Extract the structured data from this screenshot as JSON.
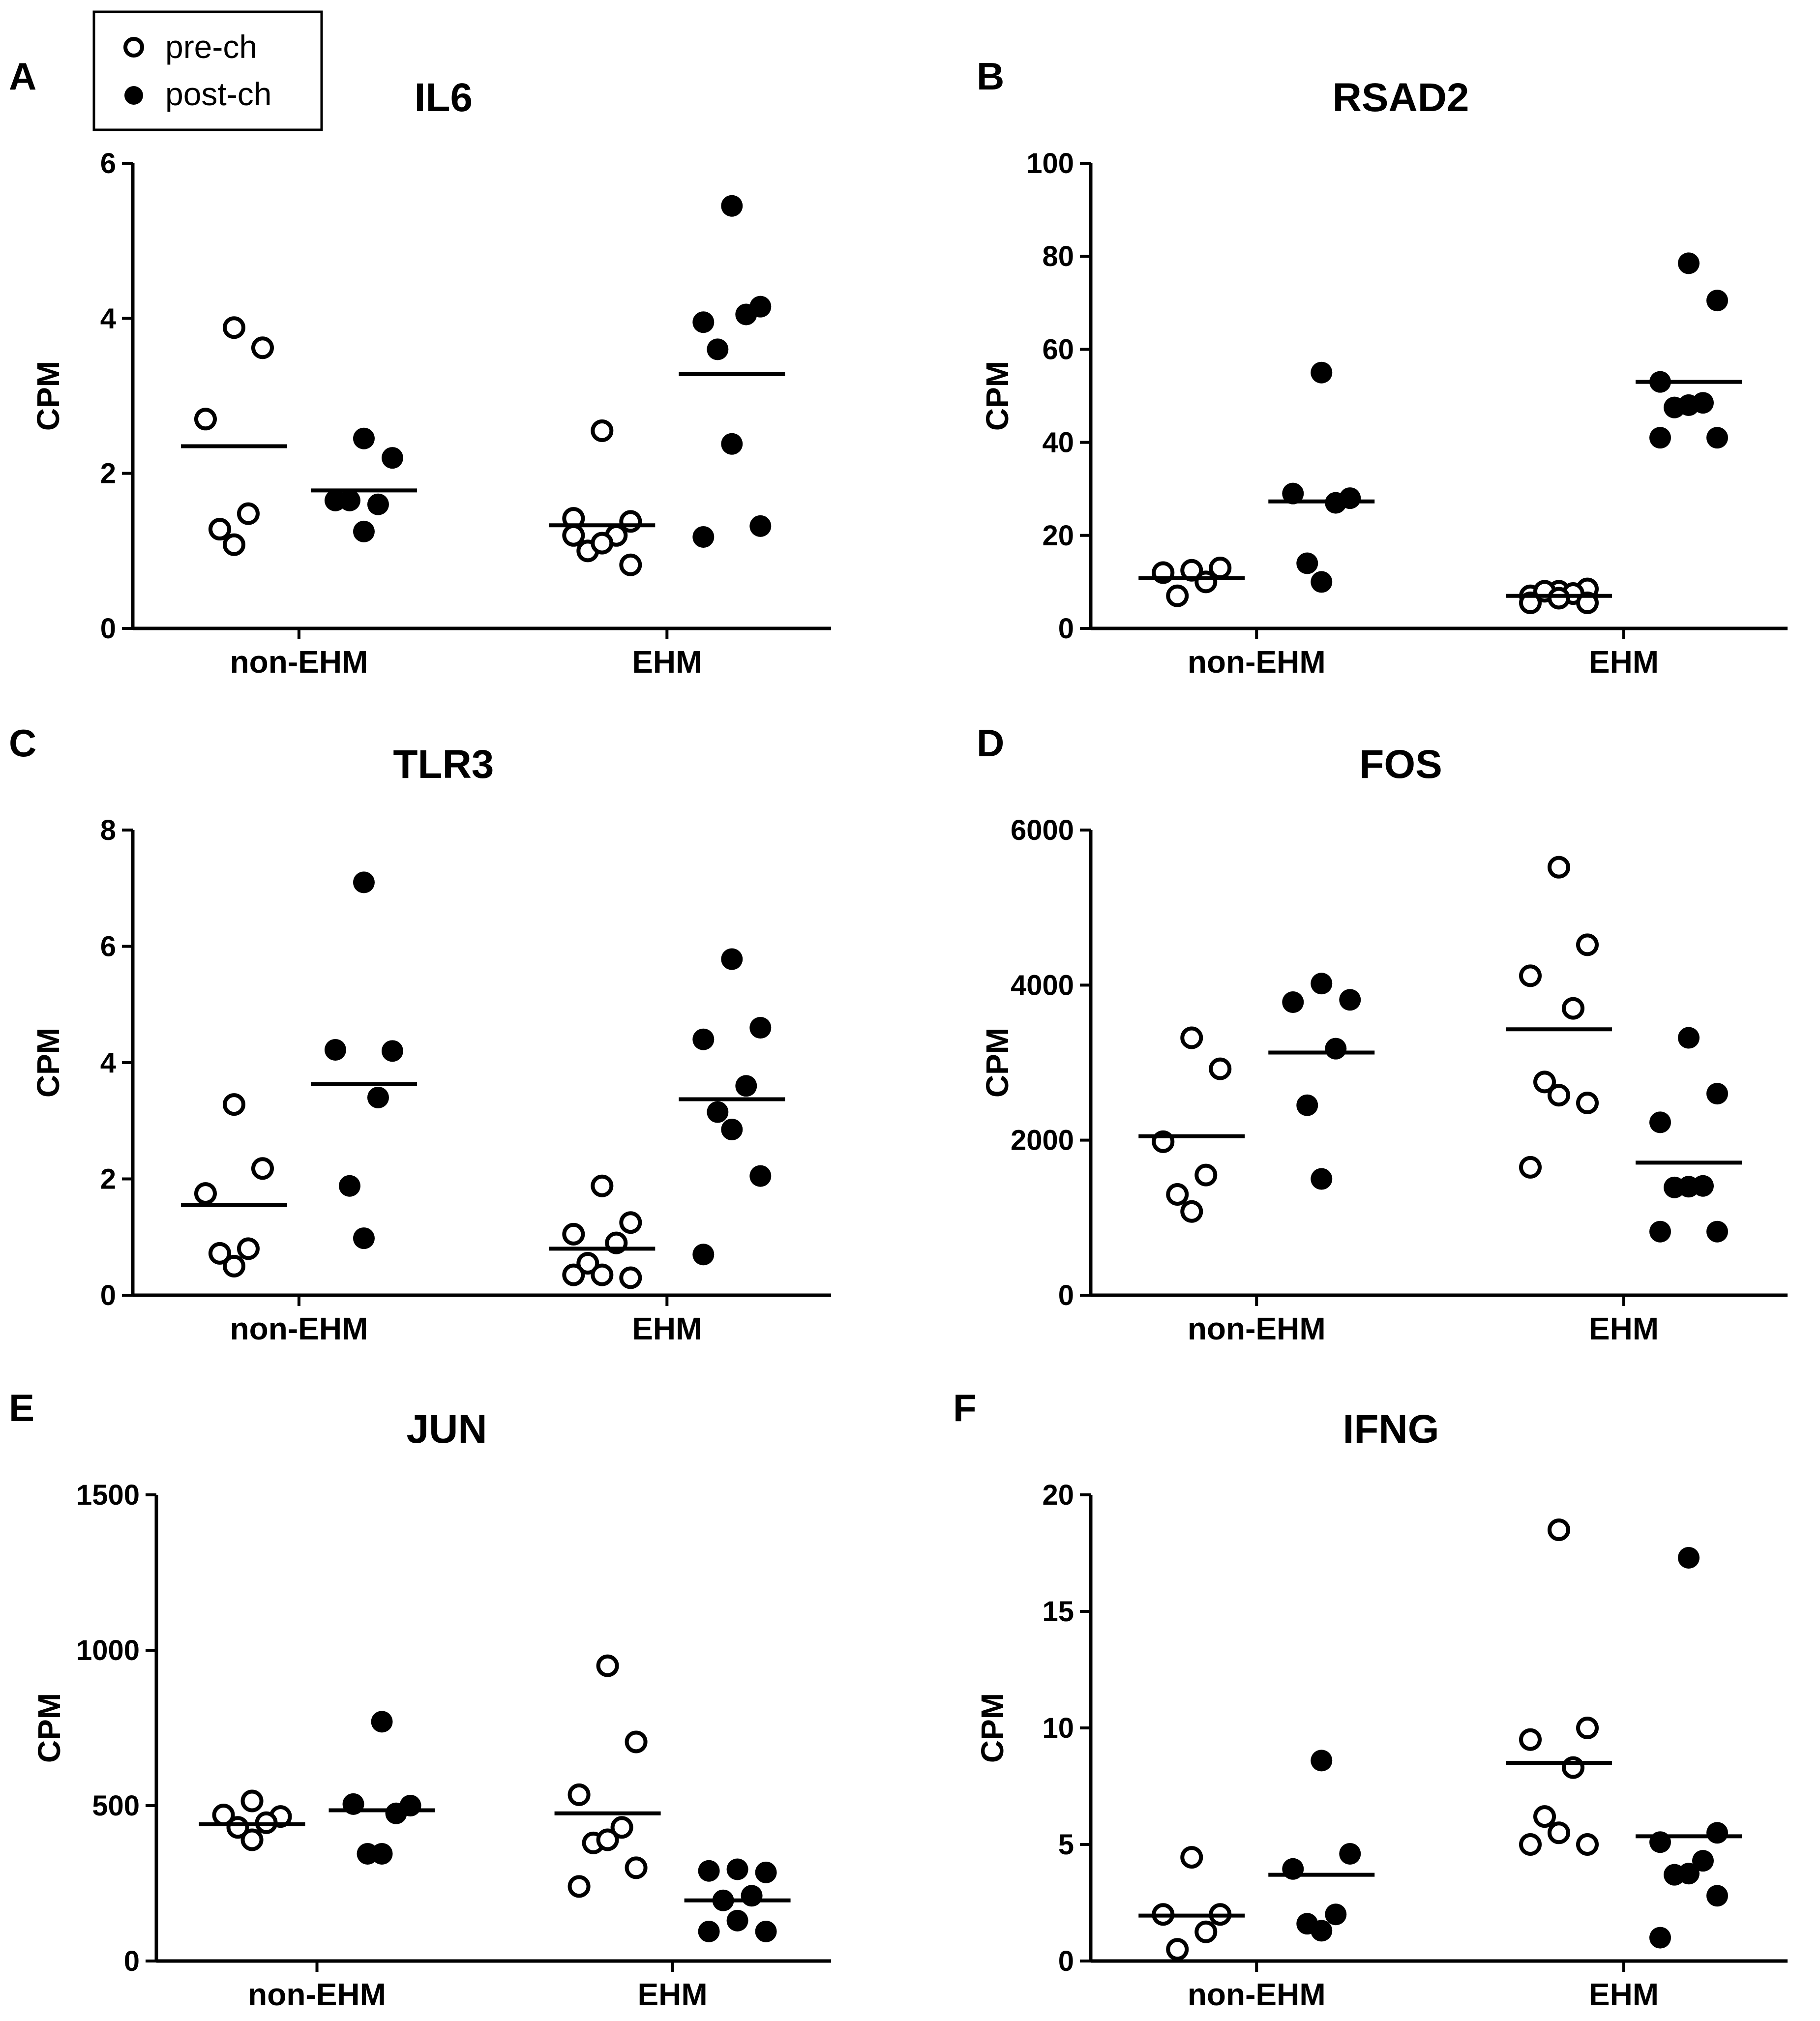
{
  "legend": {
    "entries": [
      {
        "name": "pre-ch",
        "marker": "open-circle"
      },
      {
        "name": "post-ch",
        "marker": "filled-circle"
      }
    ]
  },
  "colors": {
    "ink": "#000000",
    "background": "#ffffff"
  },
  "chart_data": [
    {
      "panel": "A",
      "type": "scatter",
      "title": "IL6",
      "ylabel": "CPM",
      "xlabel": "",
      "categories": [
        "non-EHM",
        "EHM"
      ],
      "ylim": [
        0,
        6
      ],
      "yticks": [
        0,
        2,
        4,
        6
      ],
      "yticklabels": [
        "0",
        "2",
        "4",
        "6"
      ],
      "series": [
        {
          "name": "pre-ch",
          "mean": [
            2.35,
            1.33
          ],
          "values": [
            [
              3.88,
              3.62,
              2.7,
              1.48,
              1.28,
              1.08
            ],
            [
              2.55,
              1.38,
              1.42,
              1.2,
              1.0,
              1.1,
              0.82,
              1.2
            ]
          ]
        },
        {
          "name": "post-ch",
          "mean": [
            1.78,
            3.28
          ],
          "values": [
            [
              2.45,
              2.2,
              1.65,
              1.6,
              1.65,
              1.25
            ],
            [
              5.45,
              4.15,
              3.95,
              4.05,
              3.6,
              2.38,
              1.32,
              1.18
            ]
          ]
        }
      ]
    },
    {
      "panel": "B",
      "type": "scatter",
      "title": "RSAD2",
      "ylabel": "CPM",
      "xlabel": "",
      "categories": [
        "non-EHM",
        "EHM"
      ],
      "ylim": [
        0,
        100
      ],
      "yticks": [
        0,
        20,
        40,
        60,
        80,
        100
      ],
      "yticklabels": [
        "0",
        "20",
        "40",
        "60",
        "80",
        "100"
      ],
      "series": [
        {
          "name": "pre-ch",
          "mean": [
            10.8,
            7.0
          ],
          "values": [
            [
              12.5,
              13,
              12,
              10,
              7
            ],
            [
              8,
              8.5,
              7,
              7.5,
              8,
              6.5,
              5.5,
              5.5
            ]
          ]
        },
        {
          "name": "post-ch",
          "mean": [
            27.3,
            53.0
          ],
          "values": [
            [
              55,
              28,
              29,
              27,
              14,
              10
            ],
            [
              78.5,
              70.5,
              53,
              48.5,
              47.5,
              48,
              41,
              41
            ]
          ]
        }
      ]
    },
    {
      "panel": "C",
      "type": "scatter",
      "title": "TLR3",
      "ylabel": "CPM",
      "xlabel": "",
      "categories": [
        "non-EHM",
        "EHM"
      ],
      "ylim": [
        0,
        8
      ],
      "yticks": [
        0,
        2,
        4,
        6,
        8
      ],
      "yticklabels": [
        "0",
        "2",
        "4",
        "6",
        "8"
      ],
      "series": [
        {
          "name": "pre-ch",
          "mean": [
            1.55,
            0.8
          ],
          "values": [
            [
              3.28,
              2.18,
              1.75,
              0.8,
              0.72,
              0.5
            ],
            [
              1.88,
              1.25,
              1.05,
              0.9,
              0.55,
              0.35,
              0.3,
              0.35
            ]
          ]
        },
        {
          "name": "post-ch",
          "mean": [
            3.63,
            3.37
          ],
          "values": [
            [
              7.1,
              4.2,
              4.22,
              3.4,
              1.88,
              0.98
            ],
            [
              5.78,
              4.6,
              4.4,
              3.6,
              3.15,
              2.85,
              2.05,
              0.7
            ]
          ]
        }
      ]
    },
    {
      "panel": "D",
      "type": "scatter",
      "title": "FOS",
      "ylabel": "CPM",
      "xlabel": "",
      "categories": [
        "non-EHM",
        "EHM"
      ],
      "ylim": [
        0,
        6000
      ],
      "yticks": [
        0,
        2000,
        4000,
        6000
      ],
      "yticklabels": [
        "0",
        "2000",
        "4000",
        "6000"
      ],
      "series": [
        {
          "name": "pre-ch",
          "mean": [
            2050,
            3430
          ],
          "values": [
            [
              3320,
              2920,
              1980,
              1550,
              1300,
              1080
            ],
            [
              5520,
              4520,
              4120,
              3700,
              2750,
              2580,
              2480,
              1650
            ]
          ]
        },
        {
          "name": "post-ch",
          "mean": [
            3130,
            1710
          ],
          "values": [
            [
              4020,
              3810,
              3780,
              3180,
              2450,
              1500
            ],
            [
              3320,
              2600,
              2230,
              1410,
              1390,
              1400,
              820,
              820
            ]
          ]
        }
      ]
    },
    {
      "panel": "E",
      "type": "scatter",
      "title": "JUN",
      "ylabel": "CPM",
      "xlabel": "",
      "categories": [
        "non-EHM",
        "EHM"
      ],
      "ylim": [
        0,
        1500
      ],
      "yticks": [
        0,
        500,
        1000,
        1500
      ],
      "yticklabels": [
        "0",
        "500",
        "1000",
        "1500"
      ],
      "series": [
        {
          "name": "pre-ch",
          "mean": [
            440,
            475
          ],
          "values": [
            [
              515,
              465,
              470,
              445,
              430,
              390
            ],
            [
              950,
              705,
              535,
              430,
              380,
              390,
              300,
              240
            ]
          ]
        },
        {
          "name": "post-ch",
          "mean": [
            485,
            195
          ],
          "values": [
            [
              770,
              500,
              505,
              475,
              345,
              345
            ],
            [
              295,
              285,
              290,
              210,
              195,
              130,
              95,
              95
            ]
          ]
        }
      ]
    },
    {
      "panel": "F",
      "type": "scatter",
      "title": "IFNG",
      "ylabel": "CPM",
      "xlabel": "",
      "categories": [
        "non-EHM",
        "EHM"
      ],
      "ylim": [
        0,
        20
      ],
      "yticks": [
        0,
        5,
        10,
        15,
        20
      ],
      "yticklabels": [
        "0",
        "5",
        "10",
        "15",
        "20"
      ],
      "series": [
        {
          "name": "pre-ch",
          "mean": [
            1.95,
            8.5
          ],
          "values": [
            [
              4.45,
              2.0,
              2.0,
              1.25,
              0.5
            ],
            [
              18.5,
              10.0,
              9.5,
              8.3,
              6.2,
              5.5,
              5.0,
              5.0
            ]
          ]
        },
        {
          "name": "post-ch",
          "mean": [
            3.7,
            5.35
          ],
          "values": [
            [
              8.6,
              4.6,
              3.95,
              2.0,
              1.6,
              1.3
            ],
            [
              17.3,
              5.5,
              5.1,
              4.3,
              3.7,
              3.75,
              2.8,
              1.0
            ]
          ]
        }
      ]
    }
  ]
}
